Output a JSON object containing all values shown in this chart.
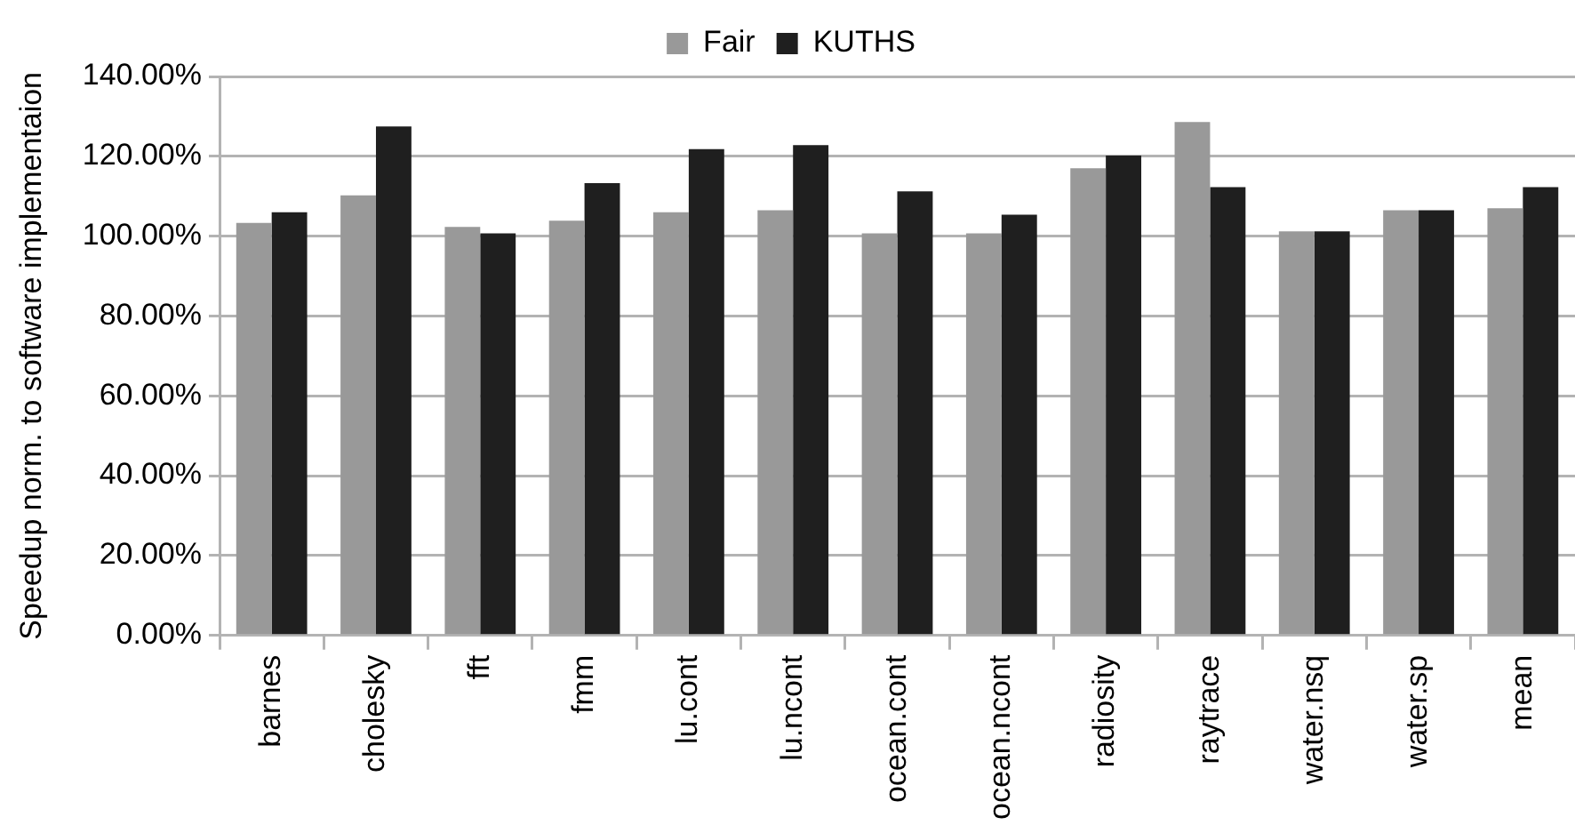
{
  "chart_data": {
    "type": "bar",
    "ylabel": "Speedup norm. to software implementaion",
    "categories": [
      "barnes",
      "cholesky",
      "fft",
      "fmm",
      "lu.cont",
      "lu.ncont",
      "ocean.cont",
      "ocean.ncont",
      "radiosity",
      "raytrace",
      "water.nsq",
      "water.sp",
      "mean"
    ],
    "series": [
      {
        "name": "Fair",
        "color": "#999999",
        "values": [
          103.3,
          110.2,
          102.3,
          103.9,
          106.0,
          106.5,
          100.7,
          100.7,
          117.0,
          128.6,
          101.2,
          106.5,
          107.0
        ]
      },
      {
        "name": "KUTHS",
        "color": "#1f1f1f",
        "values": [
          106.0,
          127.5,
          100.7,
          113.3,
          121.8,
          122.8,
          111.2,
          105.4,
          120.2,
          112.3,
          101.2,
          106.5,
          112.3
        ]
      }
    ],
    "ylim": [
      0,
      140
    ],
    "yticks": [
      {
        "value": 0,
        "label": "0.00%"
      },
      {
        "value": 20,
        "label": "20.00%"
      },
      {
        "value": 40,
        "label": "40.00%"
      },
      {
        "value": 60,
        "label": "60.00%"
      },
      {
        "value": 80,
        "label": "80.00%"
      },
      {
        "value": 100,
        "label": "100.00%"
      },
      {
        "value": 120,
        "label": "120.00%"
      },
      {
        "value": 140,
        "label": "140.00%"
      }
    ],
    "grid": "y",
    "legend": "top"
  }
}
